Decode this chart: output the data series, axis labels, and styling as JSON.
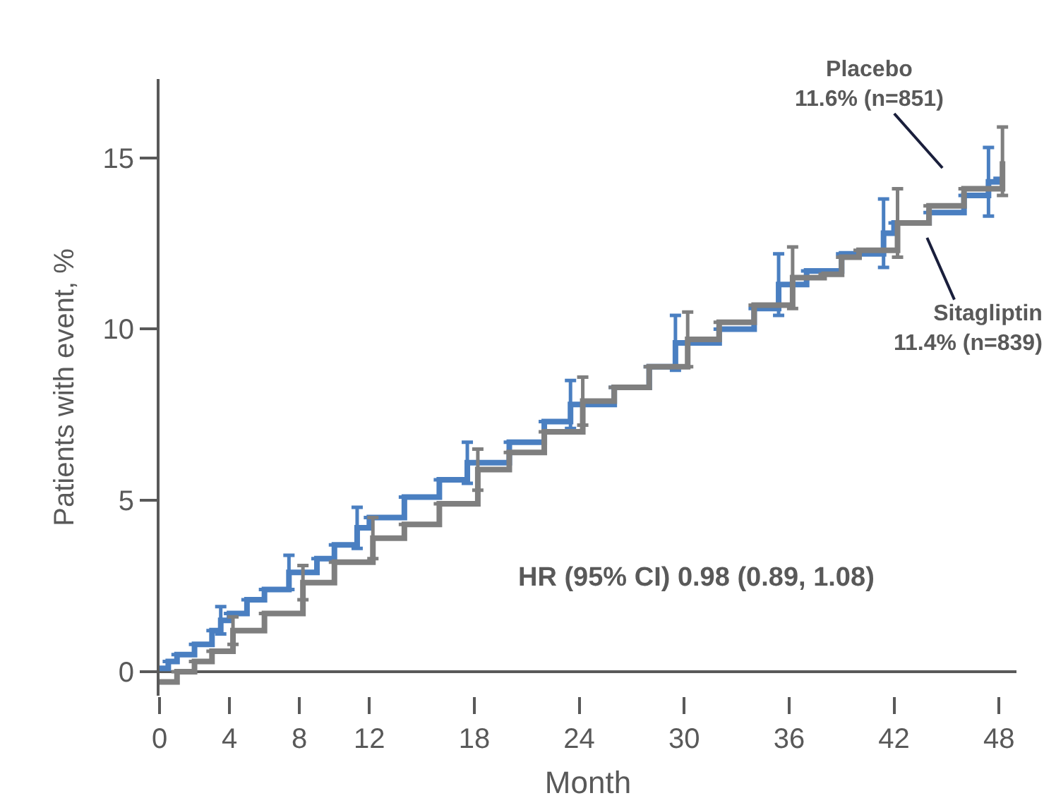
{
  "chart_data": {
    "type": "step",
    "xlabel": "Month",
    "ylabel": "Patients with event, %",
    "xlim": [
      0,
      49
    ],
    "ylim": [
      -0.7,
      17.3
    ],
    "xticks": [
      0,
      4,
      8,
      12,
      18,
      24,
      30,
      36,
      42,
      48
    ],
    "yticks": [
      0,
      5,
      10,
      15
    ],
    "marker": "none",
    "line_style": "solid",
    "series": [
      {
        "color": "#4a7fc1",
        "x": [
          0,
          0.5,
          1,
          2,
          3,
          3.5,
          4,
          5,
          6,
          7.4,
          9,
          10,
          11.3,
          12,
          14,
          16,
          17.6,
          20,
          22,
          23.5,
          26,
          28,
          29.5,
          32,
          34,
          35.4,
          37,
          39,
          41.4,
          42,
          44,
          46,
          47.4,
          48
        ],
        "values": [
          0.1,
          0.3,
          0.5,
          0.8,
          1.2,
          1.5,
          1.7,
          2.1,
          2.4,
          2.9,
          3.3,
          3.7,
          4.2,
          4.5,
          5.1,
          5.6,
          6.1,
          6.7,
          7.3,
          7.8,
          8.3,
          8.9,
          9.6,
          10.0,
          10.6,
          11.3,
          11.7,
          12.2,
          12.8,
          13.1,
          13.4,
          13.9,
          14.3,
          14.4
        ],
        "errors": [
          null,
          null,
          null,
          null,
          null,
          0.4,
          null,
          null,
          null,
          0.5,
          null,
          null,
          0.6,
          null,
          null,
          null,
          0.6,
          null,
          null,
          0.7,
          null,
          null,
          0.8,
          null,
          null,
          0.9,
          null,
          null,
          1.0,
          null,
          null,
          null,
          1.0,
          null
        ]
      },
      {
        "color": "#7f7f7f",
        "x": [
          0,
          1,
          2,
          3,
          4.2,
          6,
          8.2,
          10,
          12.2,
          14,
          16,
          18.2,
          20,
          22,
          24.2,
          26,
          28,
          30.2,
          32,
          34,
          36.2,
          38,
          39,
          40,
          42.2,
          44,
          46,
          48.2
        ],
        "values": [
          -0.3,
          0.0,
          0.3,
          0.6,
          1.2,
          1.7,
          2.6,
          3.2,
          3.9,
          4.3,
          4.9,
          5.9,
          6.4,
          7.0,
          7.9,
          8.3,
          8.9,
          9.7,
          10.2,
          10.7,
          11.5,
          11.6,
          12.1,
          12.3,
          13.1,
          13.6,
          14.1,
          14.9
        ],
        "errors": [
          null,
          null,
          null,
          null,
          0.4,
          null,
          0.5,
          null,
          0.6,
          null,
          null,
          0.6,
          null,
          null,
          0.7,
          null,
          null,
          0.8,
          null,
          null,
          0.9,
          null,
          null,
          null,
          1.0,
          null,
          null,
          1.0
        ]
      }
    ],
    "annotations": [
      "Placebo\n11.6% (n=851)",
      "Sitagliptin\n11.4% (n=839)",
      "HR (95% CI) 0.98 (0.89, 1.08)"
    ]
  }
}
